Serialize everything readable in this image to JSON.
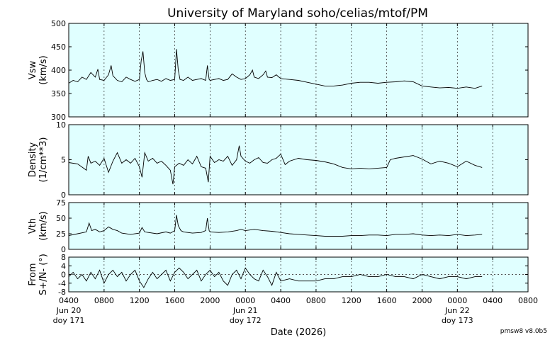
{
  "title": "University of Maryland  soho/celias/mtof/PM",
  "version": "pmsw8 v8.0b5",
  "chart_data": {
    "type": "line",
    "xlabel": "Date (2026)",
    "x_range_hours": [
      0,
      52
    ],
    "x_ticks": [
      {
        "hour": 0,
        "lines": [
          "0400",
          "Jun 20",
          "doy 171"
        ]
      },
      {
        "hour": 4,
        "lines": [
          "0800"
        ]
      },
      {
        "hour": 8,
        "lines": [
          "1200"
        ]
      },
      {
        "hour": 12,
        "lines": [
          "1600"
        ]
      },
      {
        "hour": 16,
        "lines": [
          "2000"
        ]
      },
      {
        "hour": 20,
        "lines": [
          "0000",
          "Jun 21",
          "doy 172"
        ]
      },
      {
        "hour": 24,
        "lines": [
          "0400"
        ]
      },
      {
        "hour": 28,
        "lines": [
          "0800"
        ]
      },
      {
        "hour": 32,
        "lines": [
          "1200"
        ]
      },
      {
        "hour": 36,
        "lines": [
          "1600"
        ]
      },
      {
        "hour": 40,
        "lines": [
          "2000"
        ]
      },
      {
        "hour": 44,
        "lines": [
          "0000",
          "Jun 22",
          "doy 173"
        ]
      },
      {
        "hour": 48,
        "lines": [
          "0400"
        ]
      },
      {
        "hour": 52,
        "lines": [
          "0800"
        ]
      }
    ],
    "panels": [
      {
        "id": "vsw",
        "ylabel": [
          "Vsw",
          "(km/s)"
        ],
        "ylim": [
          300,
          500
        ],
        "yticks": [
          300,
          350,
          400,
          450,
          500
        ],
        "hgrid": [],
        "series": [
          [
            0,
            372
          ],
          [
            0.5,
            378
          ],
          [
            1,
            375
          ],
          [
            1.5,
            385
          ],
          [
            2,
            380
          ],
          [
            2.5,
            395
          ],
          [
            3,
            385
          ],
          [
            3.3,
            402
          ],
          [
            3.5,
            380
          ],
          [
            4,
            378
          ],
          [
            4.5,
            390
          ],
          [
            4.8,
            410
          ],
          [
            5,
            388
          ],
          [
            5.5,
            378
          ],
          [
            6,
            375
          ],
          [
            6.5,
            385
          ],
          [
            7,
            380
          ],
          [
            7.5,
            376
          ],
          [
            8,
            380
          ],
          [
            8.2,
            420
          ],
          [
            8.4,
            440
          ],
          [
            8.6,
            395
          ],
          [
            8.8,
            380
          ],
          [
            9,
            375
          ],
          [
            9.5,
            378
          ],
          [
            10,
            380
          ],
          [
            10.5,
            376
          ],
          [
            11,
            382
          ],
          [
            11.5,
            378
          ],
          [
            12,
            380
          ],
          [
            12.2,
            445
          ],
          [
            12.4,
            400
          ],
          [
            12.6,
            380
          ],
          [
            13,
            378
          ],
          [
            13.5,
            385
          ],
          [
            14,
            378
          ],
          [
            14.5,
            380
          ],
          [
            15,
            382
          ],
          [
            15.5,
            378
          ],
          [
            15.7,
            410
          ],
          [
            15.9,
            380
          ],
          [
            16,
            378
          ],
          [
            16.5,
            380
          ],
          [
            17,
            382
          ],
          [
            17.5,
            378
          ],
          [
            18,
            380
          ],
          [
            18.5,
            392
          ],
          [
            19,
            385
          ],
          [
            19.5,
            380
          ],
          [
            20,
            382
          ],
          [
            20.5,
            390
          ],
          [
            20.8,
            400
          ],
          [
            21,
            385
          ],
          [
            21.5,
            382
          ],
          [
            22,
            390
          ],
          [
            22.3,
            398
          ],
          [
            22.5,
            385
          ],
          [
            23,
            384
          ],
          [
            23.5,
            390
          ],
          [
            23.8,
            385
          ],
          [
            24,
            382
          ],
          [
            25,
            380
          ],
          [
            26,
            378
          ],
          [
            27,
            374
          ],
          [
            28,
            370
          ],
          [
            29,
            366
          ],
          [
            30,
            366
          ],
          [
            31,
            368
          ],
          [
            32,
            372
          ],
          [
            33,
            374
          ],
          [
            34,
            374
          ],
          [
            35,
            372
          ],
          [
            36,
            374
          ],
          [
            37,
            375
          ],
          [
            38,
            377
          ],
          [
            39,
            375
          ],
          [
            40,
            366
          ],
          [
            41,
            364
          ],
          [
            42,
            362
          ],
          [
            43,
            363
          ],
          [
            44,
            361
          ],
          [
            45,
            364
          ],
          [
            46,
            361
          ],
          [
            46.8,
            366
          ]
        ]
      },
      {
        "id": "density",
        "ylabel": [
          "Density",
          "(1/cm**3)"
        ],
        "ylim": [
          0,
          10
        ],
        "yticks": [
          0,
          5,
          10
        ],
        "hgrid": [],
        "series": [
          [
            0,
            4.6
          ],
          [
            1,
            4.4
          ],
          [
            2,
            3.5
          ],
          [
            2.2,
            5.5
          ],
          [
            2.5,
            4.5
          ],
          [
            3,
            4.8
          ],
          [
            3.5,
            4.2
          ],
          [
            4,
            5.2
          ],
          [
            4.5,
            3.2
          ],
          [
            5,
            4.8
          ],
          [
            5.5,
            6.0
          ],
          [
            6,
            4.5
          ],
          [
            6.5,
            5.0
          ],
          [
            7,
            4.5
          ],
          [
            7.5,
            5.2
          ],
          [
            8,
            4.0
          ],
          [
            8.3,
            2.5
          ],
          [
            8.6,
            6.0
          ],
          [
            9,
            4.8
          ],
          [
            9.5,
            5.2
          ],
          [
            10,
            4.5
          ],
          [
            10.5,
            4.8
          ],
          [
            11,
            4.2
          ],
          [
            11.5,
            3.5
          ],
          [
            11.8,
            1.5
          ],
          [
            12,
            4.0
          ],
          [
            12.5,
            4.5
          ],
          [
            13,
            4.2
          ],
          [
            13.5,
            5.0
          ],
          [
            14,
            4.4
          ],
          [
            14.5,
            5.5
          ],
          [
            15,
            4.0
          ],
          [
            15.5,
            3.8
          ],
          [
            15.8,
            1.8
          ],
          [
            16,
            5.5
          ],
          [
            16.5,
            4.6
          ],
          [
            17,
            5.0
          ],
          [
            17.5,
            4.8
          ],
          [
            18,
            5.5
          ],
          [
            18.5,
            4.2
          ],
          [
            19,
            5.0
          ],
          [
            19.3,
            7.0
          ],
          [
            19.5,
            5.5
          ],
          [
            20,
            4.8
          ],
          [
            20.5,
            4.5
          ],
          [
            21,
            5.0
          ],
          [
            21.5,
            5.3
          ],
          [
            22,
            4.6
          ],
          [
            22.5,
            4.5
          ],
          [
            23,
            5.0
          ],
          [
            23.5,
            5.2
          ],
          [
            24,
            5.8
          ],
          [
            24.5,
            4.3
          ],
          [
            25,
            4.8
          ],
          [
            26,
            5.2
          ],
          [
            27,
            5.0
          ],
          [
            28,
            4.9
          ],
          [
            29,
            4.7
          ],
          [
            30,
            4.4
          ],
          [
            31,
            3.9
          ],
          [
            32,
            3.7
          ],
          [
            33,
            3.8
          ],
          [
            34,
            3.7
          ],
          [
            35,
            3.8
          ],
          [
            36,
            3.9
          ],
          [
            36.4,
            5.0
          ],
          [
            37,
            5.2
          ],
          [
            38,
            5.4
          ],
          [
            39,
            5.6
          ],
          [
            40,
            5.1
          ],
          [
            41,
            4.4
          ],
          [
            42,
            4.8
          ],
          [
            43,
            4.5
          ],
          [
            44,
            4.0
          ],
          [
            45,
            4.8
          ],
          [
            46,
            4.2
          ],
          [
            46.8,
            3.9
          ]
        ]
      },
      {
        "id": "vth",
        "ylabel": [
          "Vth",
          "(km/s)"
        ],
        "ylim": [
          0,
          75
        ],
        "yticks": [
          0,
          25,
          50,
          75
        ],
        "hgrid": [],
        "series": [
          [
            0,
            22
          ],
          [
            1,
            25
          ],
          [
            2,
            28
          ],
          [
            2.3,
            42
          ],
          [
            2.6,
            30
          ],
          [
            3,
            32
          ],
          [
            3.5,
            28
          ],
          [
            4,
            30
          ],
          [
            4.5,
            36
          ],
          [
            5,
            32
          ],
          [
            5.5,
            30
          ],
          [
            6,
            26
          ],
          [
            7,
            24
          ],
          [
            8,
            26
          ],
          [
            8.3,
            35
          ],
          [
            8.6,
            28
          ],
          [
            9,
            27
          ],
          [
            10,
            25
          ],
          [
            11,
            28
          ],
          [
            11.5,
            26
          ],
          [
            12,
            30
          ],
          [
            12.2,
            55
          ],
          [
            12.4,
            38
          ],
          [
            12.7,
            30
          ],
          [
            13,
            28
          ],
          [
            14,
            26
          ],
          [
            15,
            27
          ],
          [
            15.5,
            30
          ],
          [
            15.7,
            50
          ],
          [
            15.9,
            30
          ],
          [
            16,
            28
          ],
          [
            17,
            27
          ],
          [
            18,
            28
          ],
          [
            19,
            30
          ],
          [
            19.5,
            32
          ],
          [
            20,
            30
          ],
          [
            21,
            32
          ],
          [
            22,
            30
          ],
          [
            23,
            29
          ],
          [
            24,
            27
          ],
          [
            25,
            25
          ],
          [
            26,
            24
          ],
          [
            27,
            23
          ],
          [
            28,
            22
          ],
          [
            29,
            21
          ],
          [
            30,
            21
          ],
          [
            31,
            21
          ],
          [
            32,
            22
          ],
          [
            33,
            22
          ],
          [
            34,
            23
          ],
          [
            35,
            23
          ],
          [
            36,
            22
          ],
          [
            37,
            24
          ],
          [
            38,
            24
          ],
          [
            39,
            25
          ],
          [
            40,
            23
          ],
          [
            41,
            22
          ],
          [
            42,
            23
          ],
          [
            43,
            22
          ],
          [
            44,
            24
          ],
          [
            45,
            22
          ],
          [
            46,
            23
          ],
          [
            46.8,
            24
          ]
        ]
      },
      {
        "id": "flow",
        "ylabel": [
          "From",
          "S+/N- (°)"
        ],
        "ylim": [
          -8,
          8
        ],
        "yticks": [
          -8,
          -4,
          0,
          4,
          8
        ],
        "hgrid": [
          0
        ],
        "series": [
          [
            0,
            -1
          ],
          [
            0.5,
            1
          ],
          [
            1,
            -2
          ],
          [
            1.5,
            0
          ],
          [
            2,
            -3
          ],
          [
            2.5,
            1
          ],
          [
            3,
            -2
          ],
          [
            3.5,
            2
          ],
          [
            4,
            -4
          ],
          [
            4.5,
            0
          ],
          [
            5,
            2
          ],
          [
            5.5,
            -1
          ],
          [
            6,
            1
          ],
          [
            6.5,
            -3
          ],
          [
            7,
            0
          ],
          [
            7.5,
            2
          ],
          [
            8,
            -3
          ],
          [
            8.5,
            -6
          ],
          [
            9,
            -2
          ],
          [
            9.5,
            1
          ],
          [
            10,
            -2
          ],
          [
            10.5,
            0
          ],
          [
            11,
            2
          ],
          [
            11.5,
            -3
          ],
          [
            12,
            1
          ],
          [
            12.5,
            3
          ],
          [
            13,
            1
          ],
          [
            13.5,
            -2
          ],
          [
            14,
            0
          ],
          [
            14.5,
            2
          ],
          [
            15,
            -3
          ],
          [
            15.5,
            0
          ],
          [
            16,
            2
          ],
          [
            16.5,
            -1
          ],
          [
            17,
            1
          ],
          [
            17.5,
            -3
          ],
          [
            18,
            -5
          ],
          [
            18.5,
            0
          ],
          [
            19,
            2
          ],
          [
            19.5,
            -2
          ],
          [
            20,
            3
          ],
          [
            20.5,
            0
          ],
          [
            21,
            -2
          ],
          [
            21.5,
            -3
          ],
          [
            22,
            2
          ],
          [
            22.5,
            -1
          ],
          [
            23,
            -5
          ],
          [
            23.5,
            1
          ],
          [
            24,
            -3
          ],
          [
            25,
            -2
          ],
          [
            26,
            -3
          ],
          [
            27,
            -3
          ],
          [
            28,
            -3
          ],
          [
            29,
            -2
          ],
          [
            30,
            -2
          ],
          [
            31,
            -1
          ],
          [
            32,
            -1
          ],
          [
            33,
            0
          ],
          [
            34,
            -1
          ],
          [
            35,
            -1
          ],
          [
            36,
            0
          ],
          [
            37,
            -1
          ],
          [
            38,
            -1
          ],
          [
            39,
            -2
          ],
          [
            40,
            0
          ],
          [
            41,
            -1
          ],
          [
            42,
            -2
          ],
          [
            43,
            -1
          ],
          [
            44,
            -1
          ],
          [
            45,
            -2
          ],
          [
            46,
            -1
          ],
          [
            46.8,
            -1
          ]
        ]
      }
    ]
  }
}
